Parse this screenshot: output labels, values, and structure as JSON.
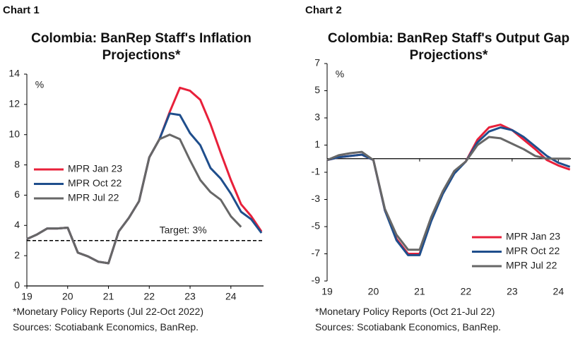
{
  "chart_data": [
    {
      "type": "line",
      "label": "Chart 1",
      "title": "Colombia: BanRep Staff's Inflation Projections*",
      "unit": "%",
      "x": [
        19,
        19.25,
        19.5,
        19.75,
        20,
        20.25,
        20.5,
        20.75,
        21,
        21.25,
        21.5,
        21.75,
        22,
        22.25,
        22.5,
        22.75,
        23,
        23.25,
        23.5,
        23.75,
        24,
        24.25,
        24.5,
        24.75
      ],
      "series": [
        {
          "name": "MPR Jan 23",
          "color": "#e8203a",
          "values": [
            3.1,
            3.4,
            3.8,
            3.8,
            3.85,
            2.2,
            1.95,
            1.6,
            1.5,
            3.6,
            4.5,
            5.6,
            8.5,
            9.7,
            11.5,
            13.1,
            12.9,
            12.3,
            10.7,
            8.8,
            7.0,
            5.4,
            4.6,
            3.6
          ]
        },
        {
          "name": "MPR Oct 22",
          "color": "#1f4e8c",
          "values": [
            3.1,
            3.4,
            3.8,
            3.8,
            3.85,
            2.2,
            1.95,
            1.6,
            1.5,
            3.6,
            4.5,
            5.6,
            8.5,
            9.7,
            11.4,
            11.3,
            10.1,
            9.3,
            7.8,
            7.1,
            6.1,
            4.9,
            4.4,
            3.5
          ]
        },
        {
          "name": "MPR Jul 22",
          "color": "#676767",
          "values": [
            3.1,
            3.4,
            3.8,
            3.8,
            3.85,
            2.2,
            1.95,
            1.6,
            1.5,
            3.6,
            4.5,
            5.6,
            8.5,
            9.7,
            10.0,
            9.7,
            8.3,
            7.0,
            6.2,
            5.7,
            4.6,
            3.9,
            null,
            null
          ]
        }
      ],
      "target": {
        "value": 3,
        "label": "Target: 3%"
      },
      "xlim": [
        19,
        24.8
      ],
      "xticks": [
        19,
        20,
        21,
        22,
        23,
        24
      ],
      "ylim": [
        0,
        14
      ],
      "yticks": [
        0,
        2,
        4,
        6,
        8,
        10,
        12,
        14
      ],
      "legend": "center left",
      "notes": [
        "*Monetary Policy Reports (Jul 22-Oct 2022)",
        "Sources: Scotiabank Economics, BanRep."
      ]
    },
    {
      "type": "line",
      "label": "Chart 2",
      "title": "Colombia: BanRep Staff's Output Gap Projections*",
      "unit": "%",
      "x": [
        19,
        19.25,
        19.5,
        19.75,
        20,
        20.25,
        20.5,
        20.75,
        21,
        21.25,
        21.5,
        21.75,
        22,
        22.25,
        22.5,
        22.75,
        23,
        23.25,
        23.5,
        23.75,
        24,
        24.25
      ],
      "series": [
        {
          "name": "MPR Jan 23",
          "color": "#e8203a",
          "values": [
            -0.1,
            0.1,
            0.2,
            0.3,
            -0.1,
            -3.8,
            -5.9,
            -7.0,
            -7.0,
            -4.5,
            -2.5,
            -1.0,
            -0.2,
            1.4,
            2.3,
            2.5,
            2.1,
            1.4,
            0.7,
            -0.1,
            -0.5,
            -0.8
          ]
        },
        {
          "name": "MPR Oct 22",
          "color": "#1f4e8c",
          "values": [
            -0.1,
            0.1,
            0.2,
            0.3,
            -0.1,
            -3.8,
            -6.0,
            -7.1,
            -7.1,
            -4.6,
            -2.6,
            -1.1,
            -0.2,
            1.2,
            2.0,
            2.3,
            2.1,
            1.6,
            0.9,
            0.2,
            -0.3,
            -0.6
          ]
        },
        {
          "name": "MPR Jul 22",
          "color": "#676767",
          "values": [
            -0.1,
            0.25,
            0.4,
            0.5,
            -0.1,
            -3.7,
            -5.6,
            -6.7,
            -6.7,
            -4.3,
            -2.4,
            -0.9,
            -0.2,
            1.0,
            1.6,
            1.5,
            1.1,
            0.7,
            0.2,
            0.0,
            0.0,
            0.0
          ]
        }
      ],
      "xlim": [
        19,
        24.27
      ],
      "xticks": [
        19,
        20,
        21,
        22,
        23,
        24
      ],
      "ylim": [
        -9,
        7
      ],
      "yticks": [
        -9,
        -7,
        -5,
        -3,
        -1,
        1,
        3,
        5,
        7
      ],
      "legend": "lower right",
      "notes": [
        "*Monetary Policy Reports (Oct 21-Jul 22)",
        "Sources: Scotiabank Economics, BanRep."
      ]
    }
  ]
}
